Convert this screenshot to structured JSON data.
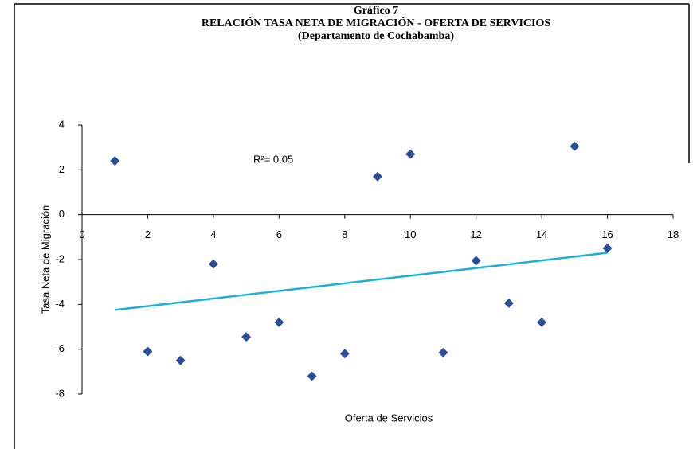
{
  "chart_data": {
    "type": "scatter",
    "title": [
      "Gráfico 7",
      "RELACIÓN TASA NETA DE MIGRACIÓN - OFERTA DE SERVICIOS",
      "(Departamento de Cochabamba)"
    ],
    "x_label": "Oferta de Servicios",
    "y_label": "Tasa Neta de Migración",
    "annotation": "R²= 0.05",
    "series": [
      {
        "name": "Cochabamba",
        "color": "#2a4d9b",
        "x": [
          1,
          2,
          3,
          4,
          5,
          6,
          7,
          8,
          9,
          10,
          11,
          12,
          13,
          14,
          15,
          16
        ],
        "values": [
          2.4,
          -6.1,
          -6.5,
          -2.2,
          -5.45,
          -4.8,
          -7.2,
          -6.2,
          1.7,
          2.7,
          -6.15,
          -2.05,
          -3.95,
          -4.8,
          3.05,
          -1.5
        ]
      }
    ],
    "trendline": {
      "color": "#1ab0d8",
      "x": [
        1,
        16
      ],
      "values": [
        -4.25,
        -1.7
      ]
    },
    "xlim": [
      0,
      18
    ],
    "xticks": [
      0,
      2,
      4,
      6,
      8,
      10,
      12,
      14,
      16,
      18
    ],
    "ylim": [
      -8,
      4
    ],
    "yticks": [
      -8,
      -6,
      -4,
      -2,
      0,
      2,
      4
    ]
  }
}
